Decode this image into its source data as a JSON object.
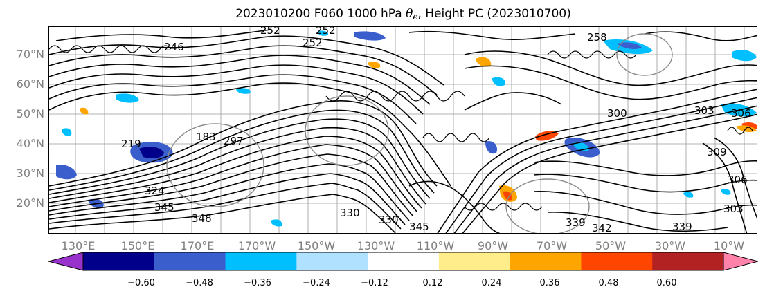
{
  "title": {
    "prefix": "2023010200 F060 1000 hPa",
    "theta": "θ",
    "theta_sub": "e",
    "suffix": ", Height PC (2023010700)"
  },
  "map": {
    "lat_labels": [
      "70°N",
      "60°N",
      "50°N",
      "40°N",
      "30°N",
      "20°N"
    ],
    "lon_labels": [
      "130°E",
      "150°E",
      "170°E",
      "170°W",
      "150°W",
      "130°W",
      "110°W",
      "90°W",
      "70°W",
      "50°W",
      "30°W",
      "10°W"
    ],
    "contour_labels": [
      "252",
      "252",
      "246",
      "252",
      "258",
      "219",
      "183",
      "297",
      "324",
      "345",
      "348",
      "330",
      "330",
      "345",
      "309",
      "303",
      "339",
      "342",
      "339",
      "303",
      "306",
      "300",
      "306"
    ]
  },
  "colorbar": {
    "ticks": [
      "−0.60",
      "−0.48",
      "−0.36",
      "−0.24",
      "−0.12",
      "0.12",
      "0.24",
      "0.36",
      "0.48",
      "0.60"
    ],
    "colors": [
      "#9932CC",
      "#00008B",
      "#3A5FCD",
      "#00BFFF",
      "#B0E2FF",
      "#FFFFFF",
      "#FFEC8B",
      "#FFA500",
      "#FF4500",
      "#B22222",
      "#FF82AB"
    ]
  }
}
